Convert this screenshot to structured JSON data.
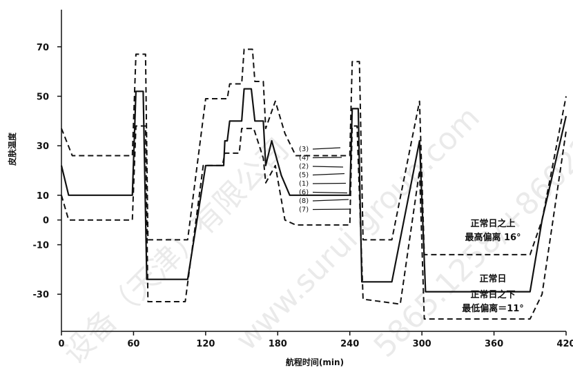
{
  "chart_data": {
    "type": "line",
    "title": "",
    "xlabel": "航程时间(min)",
    "ylabel": "皮肤温度",
    "xlim": [
      0,
      420
    ],
    "ylim": [
      -45,
      85
    ],
    "x_ticks": [
      0,
      60,
      120,
      180,
      240,
      300,
      360,
      420
    ],
    "x_tick_labels": [
      "0",
      "60",
      "120",
      "180",
      "240",
      "300",
      "360",
      "420"
    ],
    "y_ticks": [
      70,
      50,
      30,
      10,
      0,
      -10,
      -30
    ],
    "y_tick_labels": [
      "70",
      "50",
      "30",
      "10",
      "0",
      "-10",
      "-30"
    ],
    "series": [
      {
        "style": "solid",
        "points": [
          [
            0,
            22
          ],
          [
            6,
            10
          ],
          [
            59,
            10
          ],
          [
            62,
            52
          ],
          [
            68,
            52
          ],
          [
            71,
            -24
          ],
          [
            105,
            -24
          ],
          [
            120,
            22
          ],
          [
            135,
            22
          ],
          [
            136,
            32
          ],
          [
            138,
            32
          ],
          [
            140,
            40
          ],
          [
            150,
            40
          ],
          [
            152,
            53
          ],
          [
            158,
            53
          ],
          [
            161,
            40
          ],
          [
            168,
            40
          ],
          [
            170,
            22
          ],
          [
            175,
            32
          ],
          [
            183,
            18
          ],
          [
            190,
            10
          ],
          [
            240,
            10
          ],
          [
            242,
            45
          ],
          [
            247,
            45
          ],
          [
            250,
            -25
          ],
          [
            275,
            -25
          ],
          [
            298,
            32
          ],
          [
            303,
            -29
          ],
          [
            390,
            -29
          ],
          [
            400,
            0
          ],
          [
            420,
            42
          ]
        ]
      },
      {
        "style": "dashed",
        "points": [
          [
            0,
            37
          ],
          [
            9,
            26
          ],
          [
            59,
            26
          ],
          [
            62,
            67
          ],
          [
            70,
            67
          ],
          [
            72,
            -8
          ],
          [
            105,
            -8
          ],
          [
            120,
            49
          ],
          [
            138,
            49
          ],
          [
            140,
            55
          ],
          [
            150,
            55
          ],
          [
            152,
            69
          ],
          [
            159,
            69
          ],
          [
            161,
            56
          ],
          [
            168,
            56
          ],
          [
            170,
            37
          ],
          [
            178,
            48
          ],
          [
            186,
            35
          ],
          [
            195,
            26
          ],
          [
            240,
            26
          ],
          [
            242,
            64
          ],
          [
            248,
            64
          ],
          [
            251,
            -8
          ],
          [
            275,
            -8
          ],
          [
            298,
            48
          ],
          [
            302,
            -14
          ],
          [
            390,
            -14
          ],
          [
            400,
            0
          ],
          [
            420,
            50
          ]
        ]
      },
      {
        "style": "dashed",
        "points": [
          [
            0,
            10
          ],
          [
            6,
            0
          ],
          [
            59,
            0
          ],
          [
            62,
            38
          ],
          [
            70,
            38
          ],
          [
            72,
            -33
          ],
          [
            103,
            -33
          ],
          [
            118,
            22
          ],
          [
            134,
            22
          ],
          [
            136,
            27
          ],
          [
            148,
            27
          ],
          [
            150,
            37
          ],
          [
            160,
            37
          ],
          [
            168,
            25
          ],
          [
            170,
            15
          ],
          [
            178,
            22
          ],
          [
            186,
            0
          ],
          [
            195,
            -2
          ],
          [
            240,
            -2
          ],
          [
            242,
            38
          ],
          [
            246,
            38
          ],
          [
            251,
            -32
          ],
          [
            282,
            -34
          ],
          [
            298,
            20
          ],
          [
            302,
            -40
          ],
          [
            390,
            -40
          ],
          [
            400,
            -30
          ],
          [
            420,
            36
          ]
        ]
      }
    ],
    "curve_labels": [
      "(3)",
      "(4)",
      "(2)",
      "(5)",
      "(1)",
      "(6)",
      "(8)",
      "(7)"
    ],
    "annotations": {
      "upper_line1": "正常日之上",
      "upper_line2": "最高偏离 16°",
      "normal_day": "正常日",
      "lower_line1": "正常日之下",
      "lower_line2": "最低偏离＝11°"
    },
    "grid": false,
    "legend": "none"
  },
  "watermark": [
    "设备（天津）有限公司",
    "www.surui group.com",
    "5865.1258/+86022-5865.99"
  ]
}
